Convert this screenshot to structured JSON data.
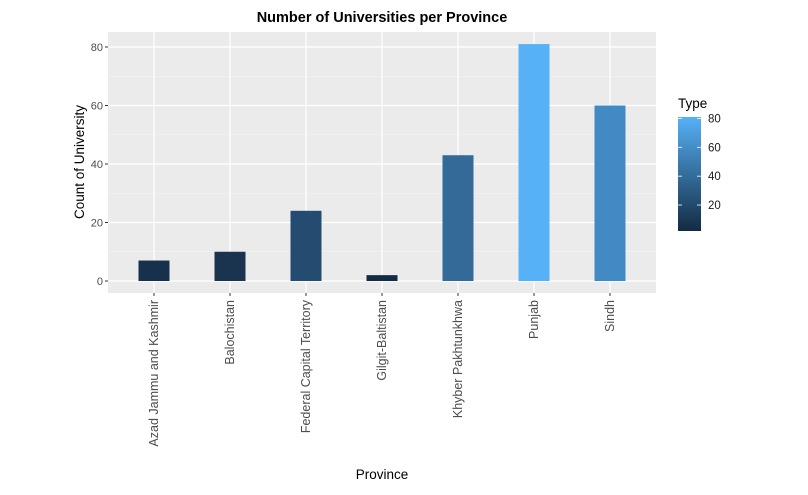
{
  "chart_data": {
    "type": "bar",
    "title": "Number of Universities per Province",
    "xlabel": "Province",
    "ylabel": "Count of University",
    "categories": [
      "Azad Jammu and Kashmir",
      "Balochistan",
      "Federal Capital Territory",
      "Gilgit-Baltistan",
      "Khyber Pakhtunkhwa",
      "Punjab",
      "Sindh"
    ],
    "values": [
      7,
      10,
      24,
      2,
      43,
      81,
      60
    ],
    "ylim": [
      -4,
      85
    ],
    "yticks": [
      0,
      20,
      40,
      60,
      80
    ],
    "grid": true,
    "fill_by": "value",
    "legend": {
      "title": "Type",
      "position": "right",
      "type": "colorbar",
      "ticks": [
        20,
        40,
        60,
        80
      ],
      "range": [
        2,
        81
      ],
      "low_color": "#132B43",
      "high_color": "#56B1F7"
    },
    "bar_colors": [
      "#17304B",
      "#1A344F",
      "#244C70",
      "#132B43",
      "#336A98",
      "#56B1F7",
      "#428AC4"
    ]
  }
}
